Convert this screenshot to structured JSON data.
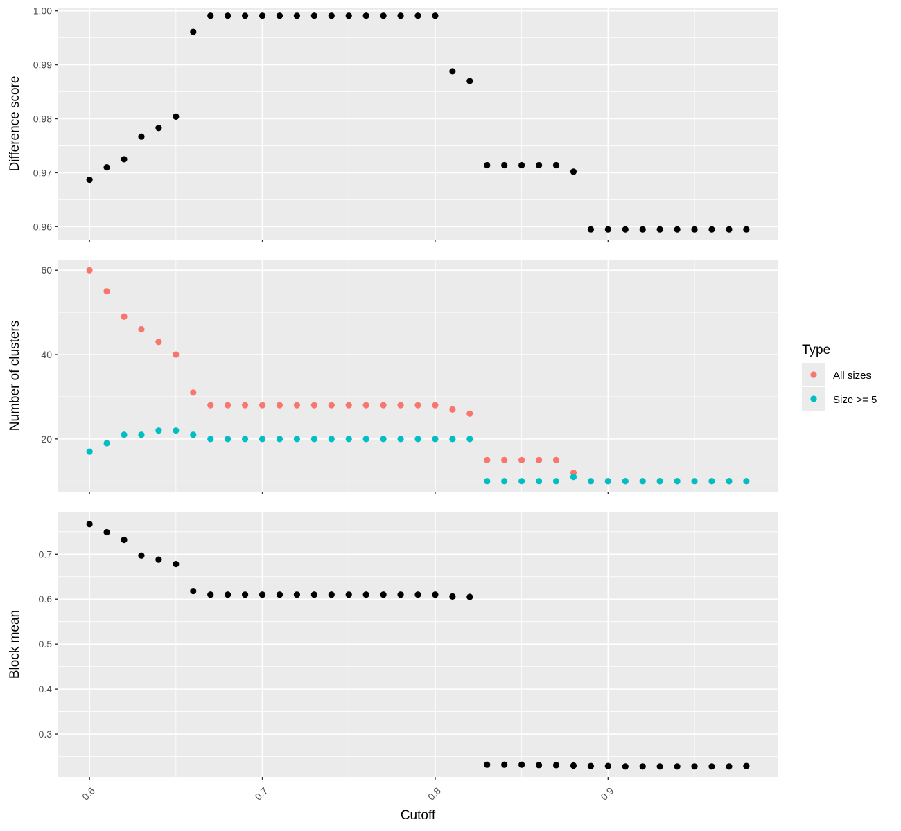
{
  "chart_data": {
    "type": "scatter",
    "xlabel": "Cutoff",
    "x_ticks": [
      0.6,
      0.7,
      0.8,
      0.9
    ],
    "x_tick_labels": [
      "0.6",
      "0.7",
      "0.8",
      "0.9"
    ],
    "xlim": [
      0.5815,
      0.9985
    ],
    "x": [
      0.6,
      0.61,
      0.62,
      0.63,
      0.64,
      0.65,
      0.66,
      0.67,
      0.68,
      0.69,
      0.7,
      0.71,
      0.72,
      0.73,
      0.74,
      0.75,
      0.76,
      0.77,
      0.78,
      0.79,
      0.8,
      0.81,
      0.82,
      0.83,
      0.84,
      0.85,
      0.86,
      0.87,
      0.88,
      0.89,
      0.9,
      0.91,
      0.92,
      0.93,
      0.94,
      0.95,
      0.96,
      0.97,
      0.98
    ],
    "legend": {
      "title": "Type",
      "position": "right",
      "entries": [
        {
          "label": "All sizes",
          "color": "#F8766D"
        },
        {
          "label": "Size >= 5",
          "color": "#00BFC4"
        }
      ]
    },
    "panels": [
      {
        "ylabel": "Difference score",
        "ylim": [
          0.9576,
          1.0006
        ],
        "y_ticks": [
          0.96,
          0.97,
          0.98,
          0.99,
          1.0
        ],
        "y_tick_labels": [
          "0.96",
          "0.97",
          "0.98",
          "0.99",
          "1.00"
        ],
        "series": [
          {
            "color": "#000000",
            "values": [
              0.9687,
              0.971,
              0.9725,
              0.9767,
              0.9783,
              0.9804,
              0.9961,
              0.9991,
              0.9991,
              0.9991,
              0.9991,
              0.9991,
              0.9991,
              0.9991,
              0.9991,
              0.9991,
              0.9991,
              0.9991,
              0.9991,
              0.9991,
              0.9991,
              0.9888,
              0.987,
              0.9714,
              0.9714,
              0.9714,
              0.9714,
              0.9714,
              0.9702,
              0.9595,
              0.9595,
              0.9595,
              0.9595,
              0.9595,
              0.9595,
              0.9595,
              0.9595,
              0.9595,
              0.9595
            ]
          }
        ]
      },
      {
        "ylabel": "Number of clusters",
        "ylim": [
          7.5,
          62.5
        ],
        "y_ticks": [
          20,
          40,
          60
        ],
        "y_tick_labels": [
          "20",
          "40",
          "60"
        ],
        "series": [
          {
            "name": "All sizes",
            "color": "#F8766D",
            "values": [
              60,
              55,
              49,
              46,
              43,
              40,
              31,
              28,
              28,
              28,
              28,
              28,
              28,
              28,
              28,
              28,
              28,
              28,
              28,
              28,
              28,
              27,
              26,
              15,
              15,
              15,
              15,
              15,
              12,
              10,
              10,
              10,
              10,
              10,
              10,
              10,
              10,
              10,
              10
            ]
          },
          {
            "name": "Size >= 5",
            "color": "#00BFC4",
            "values": [
              17,
              19,
              21,
              21,
              22,
              22,
              21,
              20,
              20,
              20,
              20,
              20,
              20,
              20,
              20,
              20,
              20,
              20,
              20,
              20,
              20,
              20,
              20,
              10,
              10,
              10,
              10,
              10,
              11,
              10,
              10,
              10,
              10,
              10,
              10,
              10,
              10,
              10,
              10
            ]
          }
        ]
      },
      {
        "ylabel": "Block mean",
        "ylim": [
          0.2046,
          0.7944
        ],
        "y_ticks": [
          0.3,
          0.4,
          0.5,
          0.6,
          0.7
        ],
        "y_tick_labels": [
          "0.3",
          "0.4",
          "0.5",
          "0.6",
          "0.7"
        ],
        "series": [
          {
            "color": "#000000",
            "values": [
              0.767,
              0.749,
              0.732,
              0.697,
              0.688,
              0.678,
              0.618,
              0.61,
              0.61,
              0.61,
              0.61,
              0.61,
              0.61,
              0.61,
              0.61,
              0.61,
              0.61,
              0.61,
              0.61,
              0.61,
              0.61,
              0.606,
              0.605,
              0.232,
              0.232,
              0.232,
              0.231,
              0.231,
              0.23,
              0.229,
              0.229,
              0.228,
              0.228,
              0.228,
              0.228,
              0.228,
              0.228,
              0.228,
              0.229
            ]
          }
        ]
      }
    ]
  }
}
